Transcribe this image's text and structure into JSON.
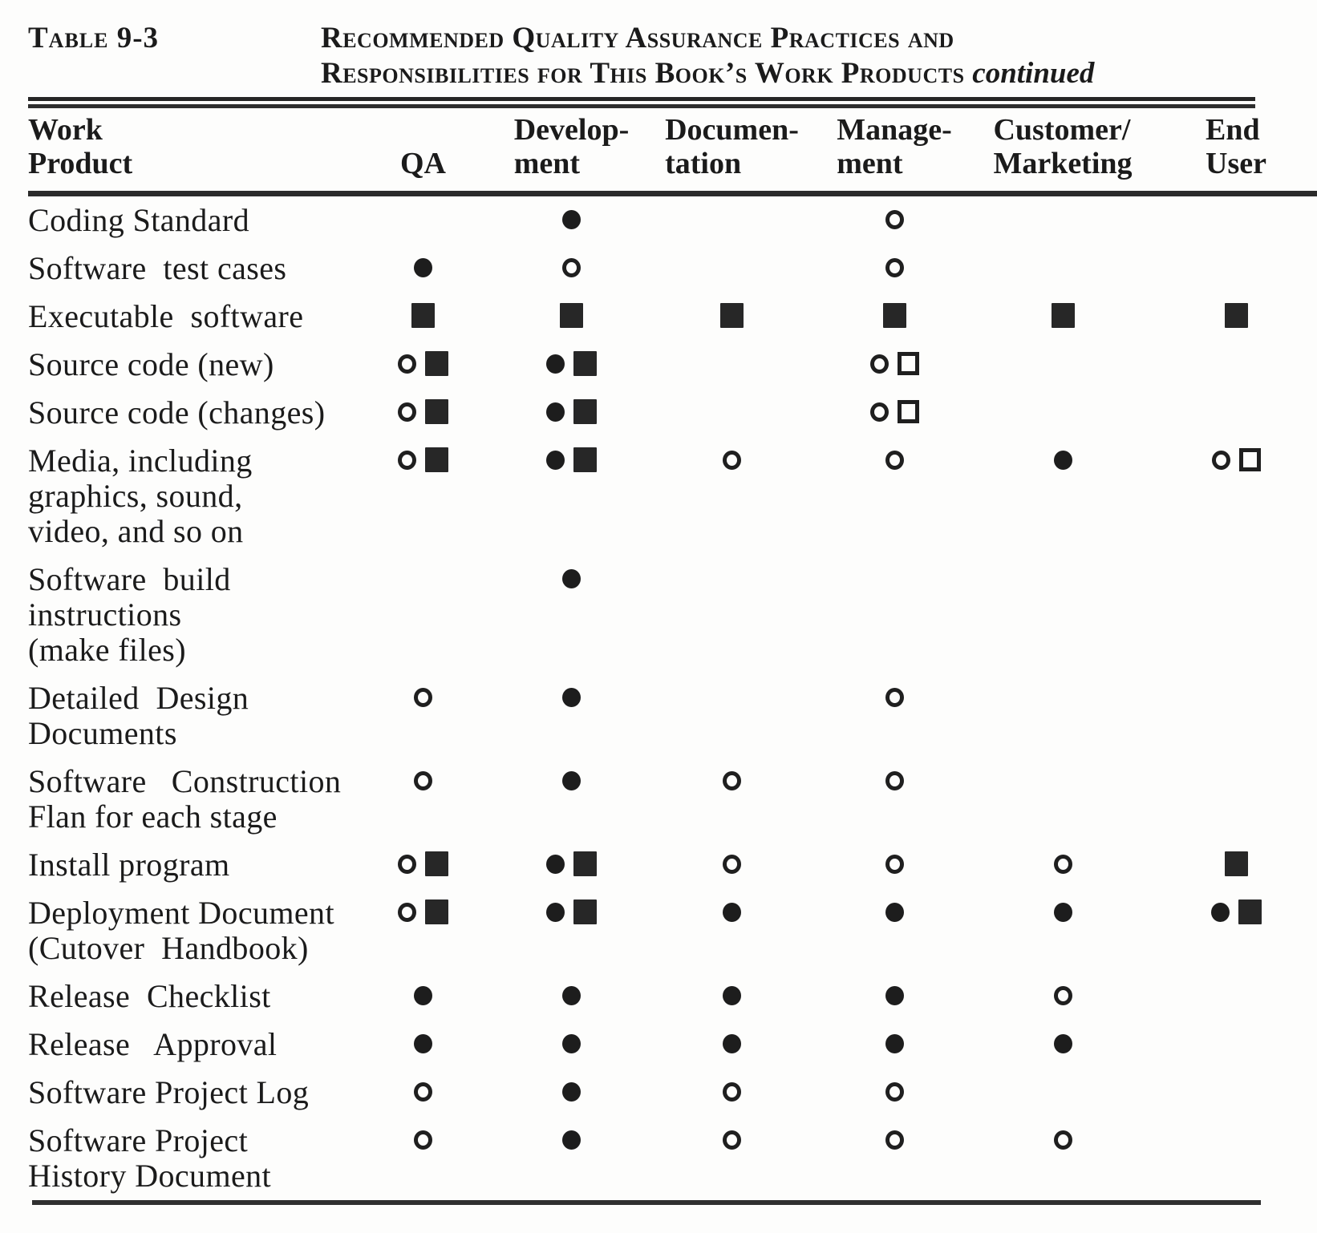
{
  "page": {
    "table_label": "Table 9-3",
    "title_line1": "Recommended Quality Assurance Practices and",
    "title_line2": "Responsibilities for This Book’s Work Products",
    "title_continued": "continued",
    "ink_color": "#1b1b1b",
    "paper_color": "#fdfdfc"
  },
  "symbols": {
    "filled-circle": "●",
    "open-circle": "○",
    "filled-square": "■",
    "open-square": "□"
  },
  "table": {
    "columns": [
      {
        "id": "work-product",
        "label": "Work\nProduct"
      },
      {
        "id": "qa",
        "label": "QA"
      },
      {
        "id": "development",
        "label": "Develop-\nment"
      },
      {
        "id": "documentation",
        "label": "Documen-\ntation"
      },
      {
        "id": "management",
        "label": "Manage-\nment"
      },
      {
        "id": "customer-marketing",
        "label": "Customer/\nMarketing"
      },
      {
        "id": "end-user",
        "label": "End\nUser"
      }
    ],
    "rows": [
      {
        "product": "Coding Standard",
        "cells": [
          [],
          [
            "filled-circle"
          ],
          [],
          [
            "open-circle"
          ],
          [],
          []
        ]
      },
      {
        "product": "Software  test cases",
        "cells": [
          [
            "filled-circle"
          ],
          [
            "open-circle"
          ],
          [],
          [
            "open-circle"
          ],
          [],
          []
        ]
      },
      {
        "product": "Executable  software",
        "cells": [
          [
            "filled-square"
          ],
          [
            "filled-square"
          ],
          [
            "filled-square"
          ],
          [
            "filled-square"
          ],
          [
            "filled-square"
          ],
          [
            "filled-square"
          ]
        ]
      },
      {
        "product": "Source code (new)",
        "cells": [
          [
            "open-circle",
            "filled-square"
          ],
          [
            "filled-circle",
            "filled-square"
          ],
          [],
          [
            "open-circle",
            "open-square"
          ],
          [],
          []
        ]
      },
      {
        "product": "Source code (changes)",
        "cells": [
          [
            "open-circle",
            "filled-square"
          ],
          [
            "filled-circle",
            "filled-square"
          ],
          [],
          [
            "open-circle",
            "open-square"
          ],
          [],
          []
        ]
      },
      {
        "product": "Media, including\ngraphics, sound,\nvideo, and so on",
        "cells": [
          [
            "open-circle",
            "filled-square"
          ],
          [
            "filled-circle",
            "filled-square"
          ],
          [
            "open-circle"
          ],
          [
            "open-circle"
          ],
          [
            "filled-circle"
          ],
          [
            "open-circle",
            "open-square"
          ]
        ]
      },
      {
        "product": "Software  build\ninstructions\n(make files)",
        "cells": [
          [],
          [
            "filled-circle"
          ],
          [],
          [],
          [],
          []
        ]
      },
      {
        "product": "Detailed  Design\nDocuments",
        "cells": [
          [
            "open-circle"
          ],
          [
            "filled-circle"
          ],
          [],
          [
            "open-circle"
          ],
          [],
          []
        ]
      },
      {
        "product": "Software   Construction\nFlan for each stage",
        "cells": [
          [
            "open-circle"
          ],
          [
            "filled-circle"
          ],
          [
            "open-circle"
          ],
          [
            "open-circle"
          ],
          [],
          []
        ]
      },
      {
        "product": "Install program",
        "cells": [
          [
            "open-circle",
            "filled-square"
          ],
          [
            "filled-circle",
            "filled-square"
          ],
          [
            "open-circle"
          ],
          [
            "open-circle"
          ],
          [
            "open-circle"
          ],
          [
            "filled-square"
          ]
        ]
      },
      {
        "product": "Deployment Document\n(Cutover  Handbook)",
        "cells": [
          [
            "open-circle",
            "filled-square"
          ],
          [
            "filled-circle",
            "filled-square"
          ],
          [
            "filled-circle"
          ],
          [
            "filled-circle"
          ],
          [
            "filled-circle"
          ],
          [
            "filled-circle",
            "filled-square"
          ]
        ]
      },
      {
        "product": "Release  Checklist",
        "cells": [
          [
            "filled-circle"
          ],
          [
            "filled-circle"
          ],
          [
            "filled-circle"
          ],
          [
            "filled-circle"
          ],
          [
            "open-circle"
          ],
          []
        ]
      },
      {
        "product": "Release   Approval",
        "cells": [
          [
            "filled-circle"
          ],
          [
            "filled-circle"
          ],
          [
            "filled-circle"
          ],
          [
            "filled-circle"
          ],
          [
            "filled-circle"
          ],
          []
        ]
      },
      {
        "product": "Software Project Log",
        "cells": [
          [
            "open-circle"
          ],
          [
            "filled-circle"
          ],
          [
            "open-circle"
          ],
          [
            "open-circle"
          ],
          [],
          []
        ]
      },
      {
        "product": "Software Project\nHistory Document",
        "cells": [
          [
            "open-circle"
          ],
          [
            "filled-circle"
          ],
          [
            "open-circle"
          ],
          [
            "open-circle"
          ],
          [
            "open-circle"
          ],
          []
        ]
      }
    ]
  }
}
